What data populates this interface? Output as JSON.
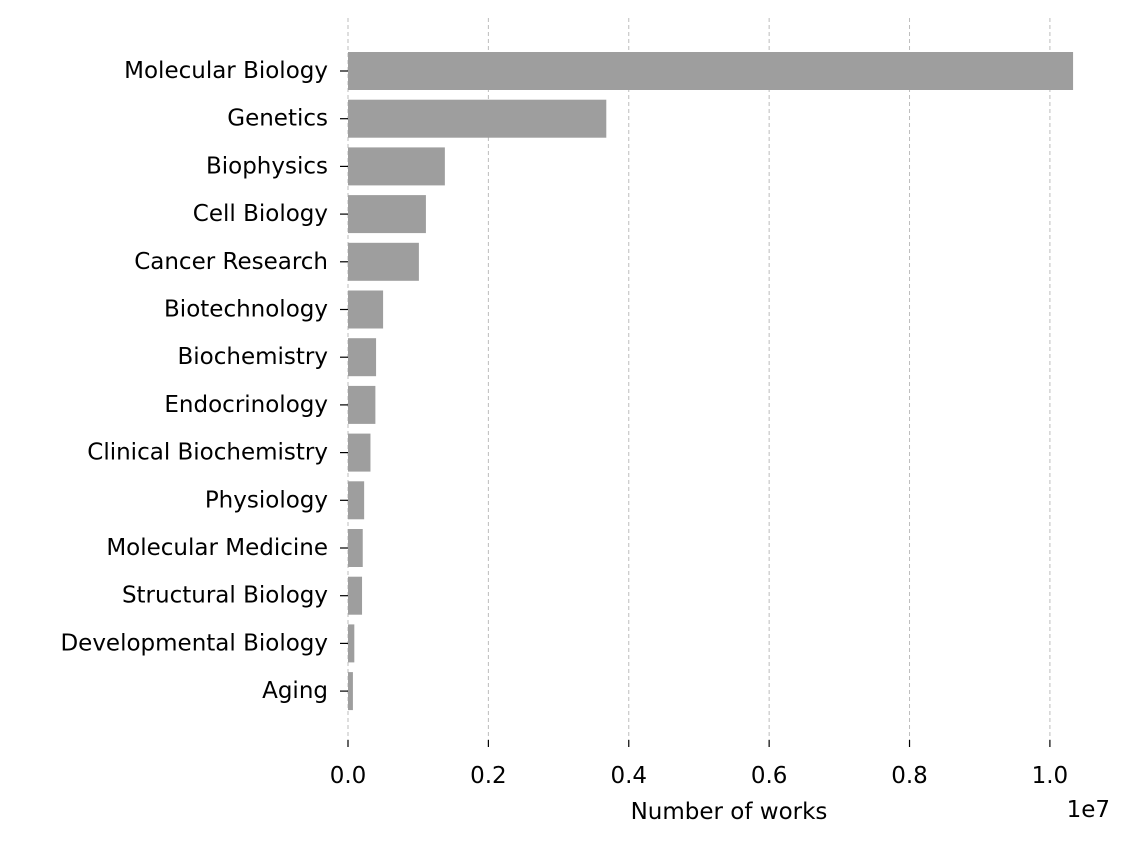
{
  "chart_data": {
    "type": "bar",
    "orientation": "horizontal",
    "categories": [
      "Molecular Biology",
      "Genetics",
      "Biophysics",
      "Cell Biology",
      "Cancer Research",
      "Biotechnology",
      "Biochemistry",
      "Endocrinology",
      "Clinical Biochemistry",
      "Physiology",
      "Molecular Medicine",
      "Structural Biology",
      "Developmental Biology",
      "Aging"
    ],
    "values": [
      10330000,
      3680000,
      1380000,
      1110000,
      1010000,
      500000,
      400000,
      390000,
      320000,
      230000,
      210000,
      200000,
      90000,
      70000
    ],
    "title": "",
    "xlabel": "Number of works",
    "ylabel": "",
    "xlim": [
      0,
      10500000
    ],
    "x_ticks": [
      0,
      2000000,
      4000000,
      6000000,
      8000000,
      10000000
    ],
    "x_tick_labels": [
      "0.0",
      "0.2",
      "0.4",
      "0.6",
      "0.8",
      "1.0"
    ],
    "x_offset_label": "1e7",
    "grid": "vertical dashed",
    "bar_color": "#9e9e9e",
    "grid_color": "#bdbdbd"
  }
}
